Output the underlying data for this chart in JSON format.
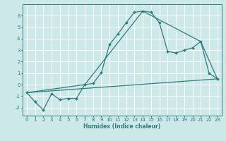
{
  "title": "",
  "xlabel": "Humidex (Indice chaleur)",
  "ylabel": "",
  "background_color": "#cce8e8",
  "grid_color": "#ffffff",
  "line_color": "#2e7d7d",
  "spine_color": "#2e7d7d",
  "xlim": [
    -0.5,
    23.5
  ],
  "ylim": [
    -2.7,
    7.0
  ],
  "yticks": [
    -2,
    -1,
    0,
    1,
    2,
    3,
    4,
    5,
    6
  ],
  "xticks": [
    0,
    1,
    2,
    3,
    4,
    5,
    6,
    7,
    8,
    9,
    10,
    11,
    12,
    13,
    14,
    15,
    16,
    17,
    18,
    19,
    20,
    21,
    22,
    23
  ],
  "series1_x": [
    0,
    1,
    2,
    3,
    4,
    5,
    6,
    7,
    8,
    9,
    10,
    11,
    12,
    13,
    14,
    15,
    16,
    17,
    18,
    19,
    20,
    21,
    22,
    23
  ],
  "series1_y": [
    -0.7,
    -1.5,
    -2.2,
    -0.8,
    -1.3,
    -1.2,
    -1.2,
    0.0,
    0.1,
    1.05,
    3.5,
    4.4,
    5.4,
    6.3,
    6.4,
    6.3,
    5.4,
    2.9,
    2.75,
    3.0,
    3.2,
    3.75,
    1.0,
    0.5
  ],
  "series2_x": [
    0,
    7,
    14,
    21,
    23
  ],
  "series2_y": [
    -0.7,
    0.0,
    6.4,
    3.75,
    0.5
  ],
  "series3_x": [
    0,
    23
  ],
  "series3_y": [
    -0.7,
    0.5
  ],
  "marker_size": 2.0,
  "linewidth": 0.9,
  "tick_fontsize": 5.0,
  "xlabel_fontsize": 5.5
}
